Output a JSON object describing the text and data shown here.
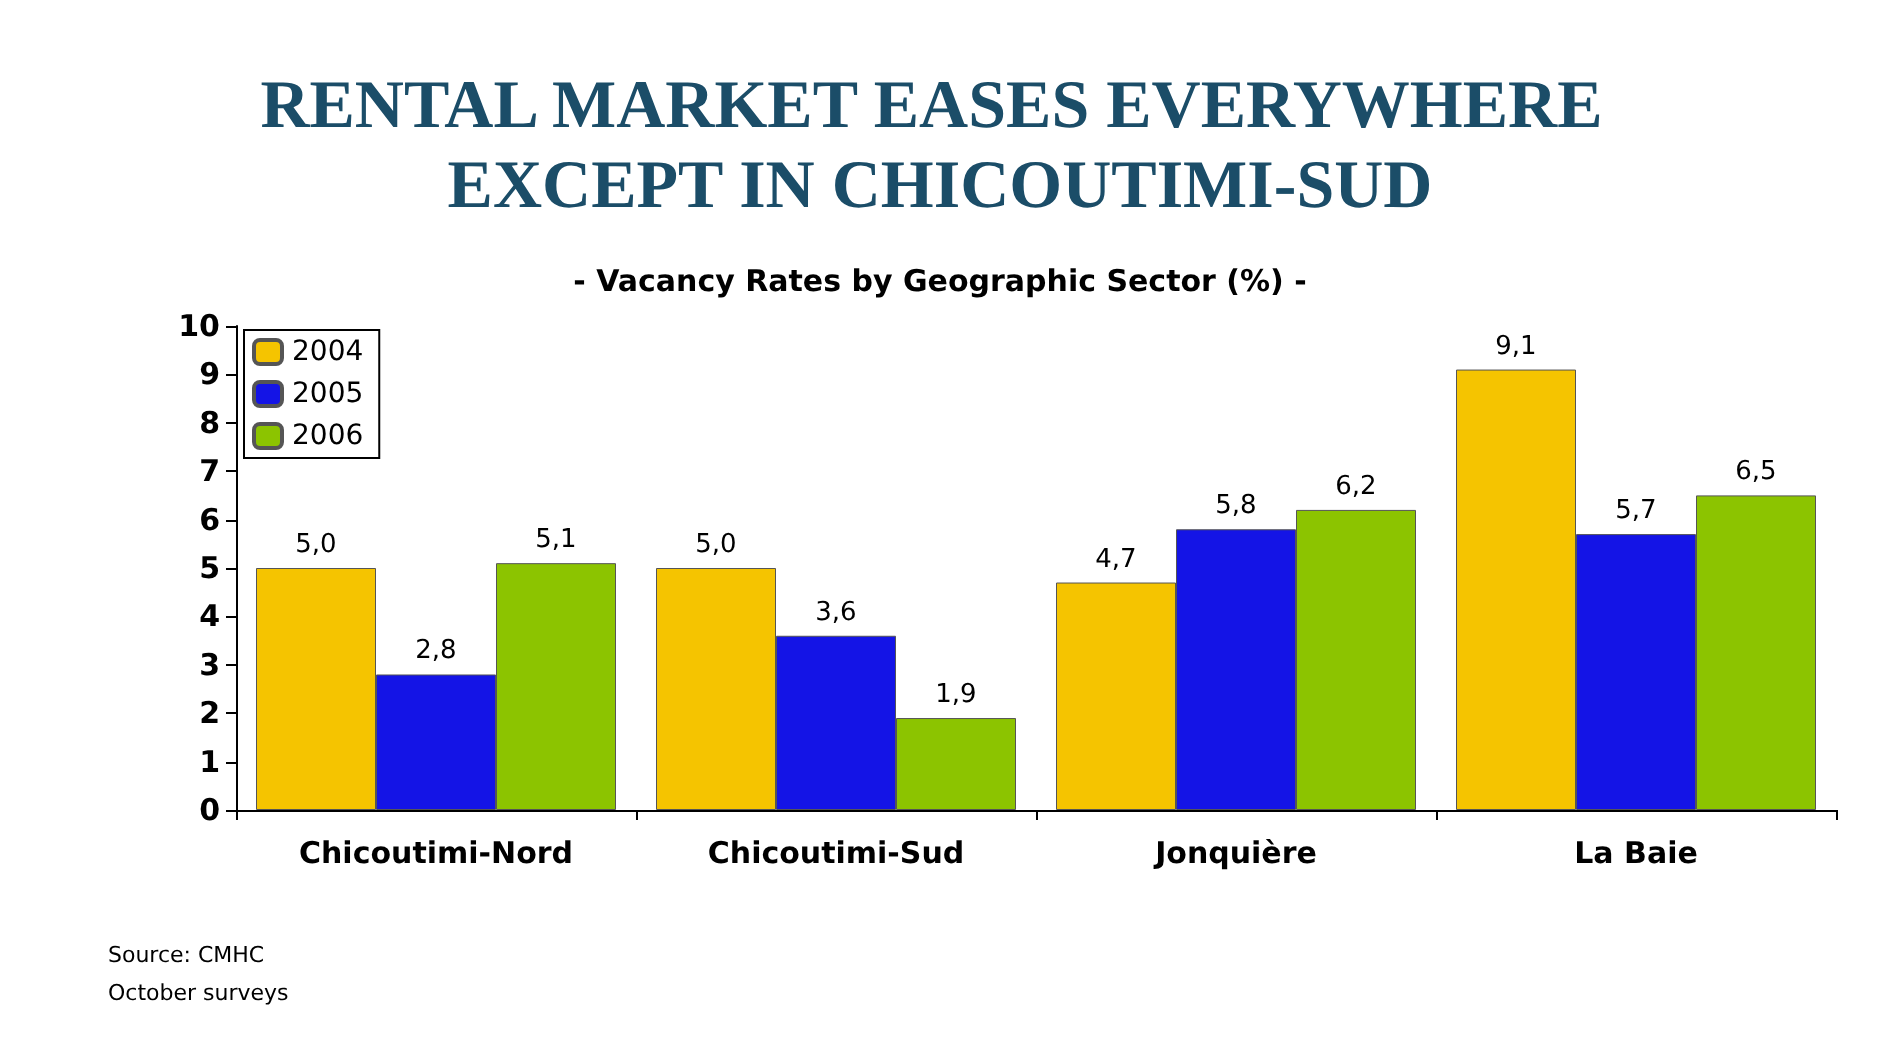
{
  "chart_data": {
    "type": "bar",
    "title": "RENTAL MARKET EASES EVERYWHERE EXCEPT IN CHICOUTIMI-SUD",
    "subtitle": "- Vacancy Rates by Geographic Sector (%) -",
    "categories": [
      "Chicoutimi-Nord",
      "Chicoutimi-Sud",
      "Jonquière",
      "La Baie"
    ],
    "series": [
      {
        "name": "2004",
        "color": "#f5c400",
        "values": [
          5.0,
          5.0,
          4.7,
          9.1
        ],
        "value_labels": [
          "5,0",
          "5,0",
          "4,7",
          "9,1"
        ]
      },
      {
        "name": "2005",
        "color": "#1414e6",
        "values": [
          2.8,
          3.6,
          5.8,
          5.7
        ],
        "value_labels": [
          "2,8",
          "3,6",
          "5,8",
          "5,7"
        ]
      },
      {
        "name": "2006",
        "color": "#8cc400",
        "values": [
          5.1,
          1.9,
          6.2,
          6.5
        ],
        "value_labels": [
          "5,1",
          "1,9",
          "6,2",
          "6,5"
        ]
      }
    ],
    "ylim": [
      0,
      10
    ],
    "yticks": [
      0,
      1,
      2,
      3,
      4,
      5,
      6,
      7,
      8,
      9,
      10
    ],
    "grid": false,
    "legend": "top left",
    "annotations": [
      "Source: CMHC",
      "October surveys"
    ]
  }
}
